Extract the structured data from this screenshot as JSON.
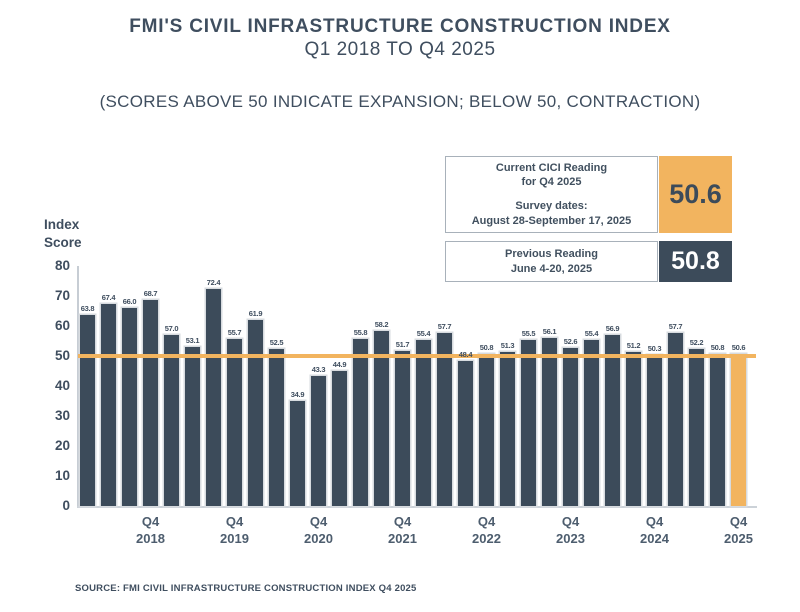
{
  "header": {
    "title_line1": "FMI'S CIVIL INFRASTRUCTURE CONSTRUCTION INDEX",
    "title_line2": "Q1 2018 TO Q4 2025",
    "subtitle": "(SCORES ABOVE 50 INDICATE EXPANSION; BELOW 50, CONTRACTION)"
  },
  "callouts": {
    "current": {
      "title_line1": "Current CICI Reading",
      "title_line2": "for Q4 2025",
      "survey_label": "Survey dates:",
      "survey_dates": "August 28-September 17, 2025",
      "value": "50.6"
    },
    "previous": {
      "title_line1": "Previous Reading",
      "title_line2": "June 4-20, 2025",
      "value": "50.8"
    }
  },
  "footer": {
    "source": "SOURCE: FMI CIVIL INFRASTRUCTURE CONSTRUCTION INDEX Q4 2025"
  },
  "chart_data": {
    "type": "bar",
    "title": "FMI'S CIVIL INFRASTRUCTURE CONSTRUCTION INDEX Q1 2018 TO Q4 2025",
    "subtitle": "(SCORES ABOVE 50 INDICATE EXPANSION; BELOW 50, CONTRACTION)",
    "ylabel": "Index\nScore",
    "xlabel": "",
    "ylim": [
      0,
      80
    ],
    "yticks": [
      80,
      70,
      60,
      50,
      40,
      30,
      20,
      10,
      0
    ],
    "grid": false,
    "threshold_value": 50,
    "categories": [
      "Q1 2018",
      "Q2 2018",
      "Q3 2018",
      "Q4 2018",
      "Q1 2019",
      "Q2 2019",
      "Q3 2019",
      "Q4 2019",
      "Q1 2020",
      "Q2 2020",
      "Q3 2020",
      "Q4 2020",
      "Q1 2021",
      "Q2 2021",
      "Q3 2021",
      "Q4 2021",
      "Q1 2022",
      "Q2 2022",
      "Q3 2022",
      "Q4 2022",
      "Q1 2023",
      "Q2 2023",
      "Q3 2023",
      "Q4 2023",
      "Q1 2024",
      "Q2 2024",
      "Q3 2024",
      "Q4 2024",
      "Q1 2025",
      "Q2 2025",
      "Q3 2025",
      "Q4 2025"
    ],
    "values": [
      63.8,
      67.4,
      66.0,
      68.7,
      57.0,
      53.1,
      72.4,
      55.7,
      61.9,
      52.5,
      34.9,
      43.3,
      44.9,
      55.8,
      58.2,
      51.7,
      55.4,
      57.7,
      48.4,
      50.8,
      51.3,
      55.5,
      56.1,
      52.6,
      55.4,
      56.9,
      51.2,
      50.3,
      57.7,
      52.2,
      50.8,
      50.6
    ],
    "highlight_index": 31,
    "x_tick_indices": [
      3,
      7,
      11,
      15,
      19,
      23,
      27,
      31
    ],
    "x_tick_lines": [
      [
        "Q4",
        "2018"
      ],
      [
        "Q4",
        "2019"
      ],
      [
        "Q4",
        "2020"
      ],
      [
        "Q4",
        "2021"
      ],
      [
        "Q4",
        "2022"
      ],
      [
        "Q4",
        "2023"
      ],
      [
        "Q4",
        "2024"
      ],
      [
        "Q4",
        "2025"
      ]
    ],
    "colors": {
      "bar": "#3c4b5a",
      "highlight_bar": "#f2b45f",
      "threshold_line": "#f2b45f",
      "value_label": "#3f4e5f"
    }
  }
}
